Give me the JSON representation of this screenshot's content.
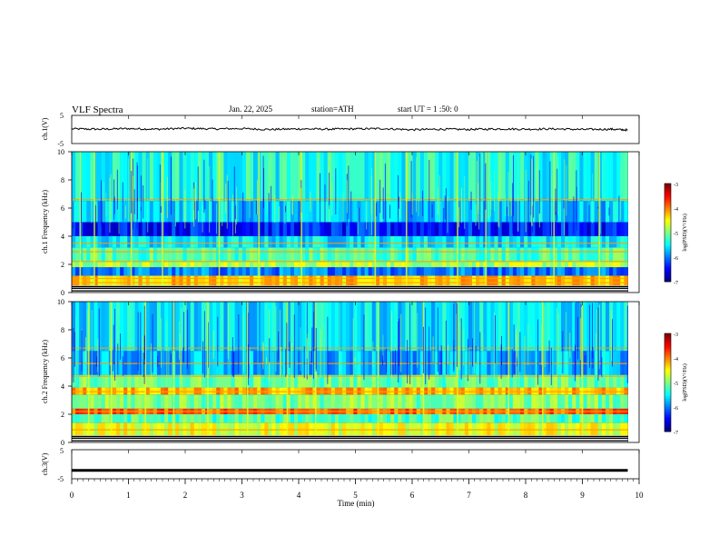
{
  "header": {
    "title": "VLF Spectra",
    "date": "Jan. 22, 2025",
    "station": "station=ATH",
    "start": "start UT = 1 :50: 0"
  },
  "chart_data": [
    {
      "type": "line",
      "panel": "ch1-waveform",
      "ylabel": "ch.1(V)",
      "ylim": [
        -5,
        5
      ],
      "yticks": [
        "5",
        "-5"
      ],
      "xlim": [
        0,
        10
      ],
      "series": [
        {
          "color": "#000000",
          "x": [
            0,
            0.5,
            1,
            1.5,
            2,
            2.5,
            3,
            3.5,
            4,
            4.5,
            5,
            5.5,
            6,
            6.5,
            7,
            7.5,
            8,
            8.5,
            9,
            9.5,
            9.8
          ],
          "y": [
            0.2,
            0.1,
            0.3,
            0.1,
            0.4,
            0.2,
            0.3,
            0.0,
            0.2,
            0.1,
            0.2,
            0.3,
            -0.1,
            0.1,
            0.0,
            0.2,
            0.1,
            0.2,
            0.0,
            0.1,
            -0.2
          ]
        }
      ]
    },
    {
      "type": "heatmap",
      "panel": "ch1-spectrogram",
      "ylabel": "ch.1 Frequency (kHz)",
      "ylim": [
        0,
        10
      ],
      "yticks": [
        "0",
        "2",
        "4",
        "6",
        "8",
        "10"
      ],
      "xlim": [
        0,
        9.8
      ],
      "colorbar": {
        "label": "log(PSD)(V²/Hz)",
        "range": [
          -7,
          -3
        ],
        "ticks": [
          "-3",
          "-4",
          "-5",
          "-6",
          "-7"
        ]
      },
      "bands_khz": [
        {
          "low": 0.5,
          "high": 1.2,
          "log_psd": -4.3
        },
        {
          "low": 1.2,
          "high": 1.8,
          "log_psd": -6.0
        },
        {
          "low": 1.8,
          "high": 2.2,
          "log_psd": -4.8
        },
        {
          "low": 2.2,
          "high": 3.2,
          "log_psd": -5.2
        },
        {
          "low": 3.2,
          "high": 4.0,
          "log_psd": -5.6
        },
        {
          "low": 4.0,
          "high": 5.0,
          "log_psd": -6.4
        },
        {
          "low": 5.0,
          "high": 6.5,
          "log_psd": -5.7
        },
        {
          "low": 6.5,
          "high": 10.0,
          "log_psd": -5.4
        }
      ],
      "lines_khz": [
        0.7,
        1.0,
        2.2,
        2.9,
        3.5,
        6.6
      ],
      "bursts_min": [
        0.15,
        0.4,
        1.05,
        1.6,
        2.6,
        3.3,
        4.05,
        5.35,
        5.9,
        6.8,
        7.3,
        8.5,
        9.3
      ]
    },
    {
      "type": "heatmap",
      "panel": "ch2-spectrogram",
      "ylabel": "ch.2 Frequency (kHz)",
      "ylim": [
        0,
        10
      ],
      "yticks": [
        "0",
        "2",
        "4",
        "6",
        "8",
        "10"
      ],
      "xlim": [
        0,
        9.8
      ],
      "colorbar": {
        "label": "log(PSD)(V²/Hz)",
        "range": [
          -7,
          -3
        ],
        "ticks": [
          "-3",
          "-4",
          "-5",
          "-6",
          "-7"
        ]
      },
      "bands_khz": [
        {
          "low": 0.5,
          "high": 1.4,
          "log_psd": -4.6
        },
        {
          "low": 1.4,
          "high": 2.0,
          "log_psd": -5.2
        },
        {
          "low": 2.0,
          "high": 2.4,
          "log_psd": -3.9
        },
        {
          "low": 2.4,
          "high": 3.4,
          "log_psd": -5.0
        },
        {
          "low": 3.4,
          "high": 3.9,
          "log_psd": -4.2
        },
        {
          "low": 3.9,
          "high": 4.8,
          "log_psd": -5.1
        },
        {
          "low": 4.8,
          "high": 6.5,
          "log_psd": -5.8
        },
        {
          "low": 6.5,
          "high": 10.0,
          "log_psd": -5.6
        }
      ],
      "lines_khz": [
        0.9,
        2.2,
        3.6,
        4.7,
        5.6,
        6.7
      ],
      "bursts_min": [
        0.3,
        0.7,
        1.3,
        1.8,
        2.4,
        3.1,
        3.8,
        4.3,
        5.4,
        6.2,
        6.8,
        7.7,
        8.3,
        9.0
      ]
    },
    {
      "type": "line",
      "panel": "ch3-waveform",
      "ylabel": "ch.3(V)",
      "ylim": [
        -5,
        5
      ],
      "yticks": [
        "5",
        "-5"
      ],
      "xlim": [
        0,
        10
      ],
      "xlabel": "Time (min)",
      "xticks": [
        "0",
        "1",
        "2",
        "3",
        "4",
        "5",
        "6",
        "7",
        "8",
        "9",
        "10"
      ],
      "series": [
        {
          "color": "#000000",
          "x": [
            0,
            9.8
          ],
          "y": [
            -2.1,
            -2.1
          ]
        }
      ]
    }
  ]
}
